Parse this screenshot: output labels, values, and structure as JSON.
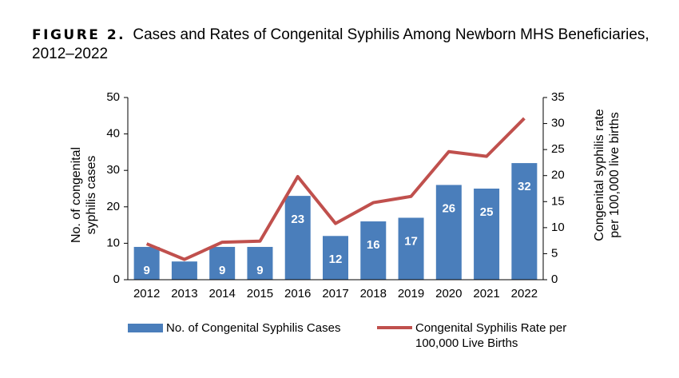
{
  "chart_data": {
    "type": "bar_line",
    "title_label": "FIGURE 2.",
    "title": "Cases and Rates of Congenital Syphilis Among Newborn MHS Beneficiaries, 2012–2022",
    "categories": [
      "2012",
      "2013",
      "2014",
      "2015",
      "2016",
      "2017",
      "2018",
      "2019",
      "2020",
      "2021",
      "2022"
    ],
    "series": [
      {
        "name": "No. of Congenital Syphilis Cases",
        "type": "bar",
        "color": "#4a7ebb",
        "values": [
          9,
          5,
          9,
          9,
          23,
          12,
          16,
          17,
          26,
          25,
          32
        ]
      },
      {
        "name": "Congenital Syphilis Rate per 100,000 Live Births",
        "type": "line",
        "axis": "y2",
        "color": "#c0504d",
        "values": [
          6.9,
          3.9,
          7.2,
          7.4,
          19.8,
          10.8,
          14.8,
          16.0,
          24.6,
          23.7,
          31.0
        ]
      }
    ],
    "y_label": "No. of congenital syphilis cases",
    "y2_label": "Congenital syphilis rate per 100,000 live births",
    "ylim": [
      0,
      50
    ],
    "yticks": [
      0,
      10,
      20,
      30,
      40,
      50
    ],
    "y2lim": [
      0,
      35
    ],
    "y2ticks": [
      0,
      5,
      10,
      15,
      20,
      25,
      30,
      35
    ],
    "grid": false,
    "legend": "bottom"
  }
}
